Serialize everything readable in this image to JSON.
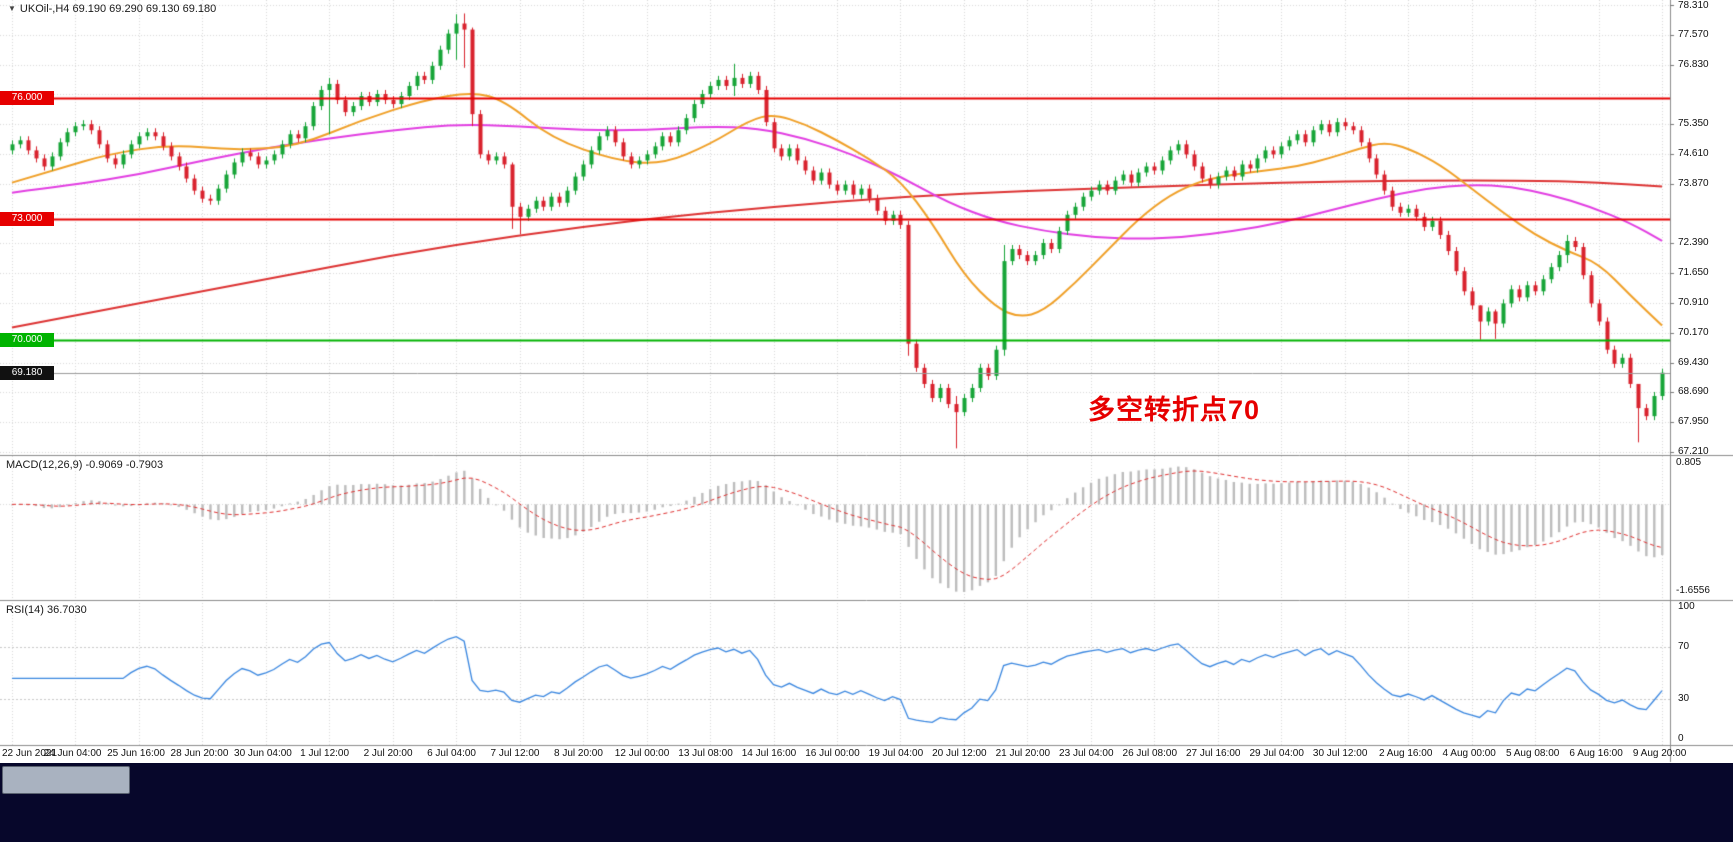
{
  "window": {
    "symbol_line": "UKOil-,H4 69.190 69.290 69.130 69.180",
    "symbol": "UKOil-",
    "timeframe": "H4",
    "ohlc": {
      "open": "69.190",
      "high": "69.290",
      "low": "69.130",
      "close": "69.180"
    }
  },
  "annotation": {
    "text": "多空转折点70",
    "color": "#e60000"
  },
  "colors": {
    "bull": "#17a538",
    "bear": "#d9232e",
    "grid": "#d9d9d9",
    "level_red": "#e60000",
    "level_green": "#00b300",
    "bid_line": "#9a9a9a",
    "ma_fast": "#f0a028",
    "ma_mid": "#e23ee2",
    "ma_slow": "#dd3333",
    "macd_hist": "#bdbdbd",
    "macd_signal": "#e03030",
    "rsi": "#3a87e0",
    "panel_border": "#8c8c8c",
    "axis_text": "#111111",
    "taskbar": "#07072b",
    "taskbar_button": "#a9b2c0",
    "badge_dark": "#111111"
  },
  "chart_data": {
    "type": "candlestick",
    "symbol": "UKOil-",
    "timeframe": "H4",
    "title": "UKOil-,H4",
    "y_range": [
      67.21,
      78.31
    ],
    "grid_step": 0.74,
    "y_tick_labels": [
      "78.310",
      "77.570",
      "76.830",
      "75.350",
      "74.610",
      "73.870",
      "72.390",
      "71.650",
      "70.910",
      "70.170",
      "69.430",
      "68.690",
      "67.950",
      "67.210"
    ],
    "x_tick_labels": [
      "22 Jun 2021",
      "24 Jun 04:00",
      "25 Jun 16:00",
      "28 Jun 20:00",
      "30 Jun 04:00",
      "1 Jul 12:00",
      "2 Jul 20:00",
      "6 Jul 04:00",
      "7 Jul 12:00",
      "8 Jul 20:00",
      "12 Jul 00:00",
      "13 Jul 08:00",
      "14 Jul 16:00",
      "16 Jul 00:00",
      "19 Jul 04:00",
      "20 Jul 12:00",
      "21 Jul 20:00",
      "23 Jul 04:00",
      "26 Jul 08:00",
      "27 Jul 16:00",
      "29 Jul 04:00",
      "30 Jul 12:00",
      "2 Aug 16:00",
      "4 Aug 00:00",
      "5 Aug 08:00",
      "6 Aug 16:00",
      "9 Aug 20:00"
    ],
    "bars_per_tick": 8,
    "closes": [
      74.85,
      74.95,
      74.7,
      74.5,
      74.3,
      74.55,
      74.9,
      75.15,
      75.3,
      75.35,
      75.2,
      74.85,
      74.5,
      74.35,
      74.6,
      74.85,
      75.05,
      75.15,
      75.05,
      74.8,
      74.55,
      74.3,
      74.0,
      73.7,
      73.5,
      73.45,
      73.75,
      74.1,
      74.4,
      74.65,
      74.55,
      74.35,
      74.45,
      74.6,
      74.85,
      75.1,
      75.0,
      75.3,
      75.8,
      76.2,
      76.35,
      75.95,
      75.65,
      75.8,
      76.05,
      75.9,
      76.1,
      75.95,
      75.85,
      76.05,
      76.3,
      76.55,
      76.45,
      76.8,
      77.2,
      77.6,
      77.85,
      77.7,
      75.6,
      74.6,
      74.45,
      74.55,
      74.35,
      73.3,
      73.05,
      73.25,
      73.45,
      73.3,
      73.55,
      73.4,
      73.7,
      74.05,
      74.35,
      74.7,
      75.05,
      75.2,
      74.9,
      74.55,
      74.35,
      74.45,
      74.6,
      74.8,
      75.05,
      74.9,
      75.2,
      75.5,
      75.85,
      76.1,
      76.3,
      76.45,
      76.3,
      76.5,
      76.35,
      76.55,
      76.2,
      75.4,
      74.75,
      74.55,
      74.75,
      74.45,
      74.2,
      73.95,
      74.15,
      73.85,
      73.7,
      73.85,
      73.6,
      73.75,
      73.5,
      73.2,
      72.95,
      73.1,
      72.85,
      69.9,
      69.3,
      68.9,
      68.55,
      68.8,
      68.4,
      68.2,
      68.55,
      68.8,
      69.3,
      69.1,
      69.75,
      71.95,
      72.25,
      72.1,
      71.95,
      72.1,
      72.4,
      72.25,
      72.7,
      73.1,
      73.3,
      73.55,
      73.7,
      73.85,
      73.7,
      73.95,
      74.1,
      73.9,
      74.15,
      74.3,
      74.2,
      74.45,
      74.7,
      74.85,
      74.6,
      74.3,
      74.0,
      73.85,
      74.05,
      74.2,
      74.05,
      74.35,
      74.25,
      74.5,
      74.7,
      74.6,
      74.8,
      74.95,
      75.1,
      74.9,
      75.2,
      75.35,
      75.15,
      75.4,
      75.3,
      75.2,
      74.9,
      74.5,
      74.1,
      73.7,
      73.3,
      73.15,
      73.25,
      73.05,
      72.8,
      72.95,
      72.6,
      72.2,
      71.7,
      71.2,
      70.85,
      70.45,
      70.7,
      70.4,
      70.9,
      71.25,
      71.05,
      71.35,
      71.2,
      71.5,
      71.8,
      72.1,
      72.45,
      72.3,
      71.6,
      70.9,
      70.45,
      69.75,
      69.4,
      69.55,
      68.9,
      68.3,
      68.1,
      68.6,
      69.18
    ],
    "wick_pad": 0.1,
    "wick_overrides": {
      "40": [
        76.5,
        75.1
      ],
      "56": [
        78.08,
        76.95
      ],
      "57": [
        78.1,
        76.75
      ],
      "58": [
        77.75,
        75.3
      ],
      "63": [
        74.4,
        72.75
      ],
      "64": [
        73.4,
        72.62
      ],
      "91": [
        76.85,
        76.05
      ],
      "113": [
        72.95,
        69.6
      ],
      "119": [
        68.6,
        67.3
      ],
      "125": [
        72.35,
        69.6
      ],
      "185": [
        70.85,
        70.0
      ],
      "187": [
        70.75,
        70.02
      ],
      "196": [
        72.6,
        71.9
      ],
      "205": [
        68.85,
        67.45
      ]
    },
    "levels": [
      {
        "label": "76.000",
        "value": 76.0,
        "color": "red"
      },
      {
        "label": "73.000",
        "value": 73.0,
        "color": "red"
      },
      {
        "label": "70.000",
        "value": 70.0,
        "color": "green"
      }
    ],
    "bid": {
      "label": "69.180",
      "value": 69.18
    },
    "overlays": [
      {
        "name": "ma-fast-orange",
        "anchors": [
          [
            0,
            73.9
          ],
          [
            6,
            74.25
          ],
          [
            12,
            74.6
          ],
          [
            20,
            74.85
          ],
          [
            28,
            74.7
          ],
          [
            36,
            74.8
          ],
          [
            44,
            75.45
          ],
          [
            52,
            75.95
          ],
          [
            58,
            76.15
          ],
          [
            62,
            75.95
          ],
          [
            68,
            75.0
          ],
          [
            76,
            74.45
          ],
          [
            82,
            74.35
          ],
          [
            88,
            74.85
          ],
          [
            93,
            75.45
          ],
          [
            96,
            75.6
          ],
          [
            100,
            75.35
          ],
          [
            104,
            74.95
          ],
          [
            108,
            74.5
          ],
          [
            112,
            73.95
          ],
          [
            116,
            72.9
          ],
          [
            120,
            71.6
          ],
          [
            124,
            70.8
          ],
          [
            127,
            70.55
          ],
          [
            130,
            70.7
          ],
          [
            134,
            71.4
          ],
          [
            138,
            72.2
          ],
          [
            142,
            73.0
          ],
          [
            146,
            73.6
          ],
          [
            150,
            73.95
          ],
          [
            154,
            74.1
          ],
          [
            158,
            74.2
          ],
          [
            162,
            74.3
          ],
          [
            166,
            74.5
          ],
          [
            170,
            74.75
          ],
          [
            173,
            74.9
          ],
          [
            176,
            74.75
          ],
          [
            180,
            74.35
          ],
          [
            184,
            73.75
          ],
          [
            188,
            73.15
          ],
          [
            192,
            72.6
          ],
          [
            196,
            72.2
          ],
          [
            200,
            71.9
          ],
          [
            204,
            71.1
          ],
          [
            208,
            70.35
          ]
        ]
      },
      {
        "name": "ma-mid-magenta",
        "anchors": [
          [
            0,
            73.65
          ],
          [
            8,
            73.85
          ],
          [
            16,
            74.1
          ],
          [
            24,
            74.45
          ],
          [
            32,
            74.75
          ],
          [
            40,
            75.0
          ],
          [
            48,
            75.2
          ],
          [
            56,
            75.35
          ],
          [
            64,
            75.3
          ],
          [
            72,
            75.2
          ],
          [
            80,
            75.2
          ],
          [
            88,
            75.3
          ],
          [
            94,
            75.25
          ],
          [
            100,
            75.0
          ],
          [
            106,
            74.6
          ],
          [
            112,
            74.05
          ],
          [
            118,
            73.4
          ],
          [
            124,
            72.95
          ],
          [
            130,
            72.7
          ],
          [
            136,
            72.55
          ],
          [
            142,
            72.5
          ],
          [
            148,
            72.55
          ],
          [
            154,
            72.7
          ],
          [
            160,
            72.9
          ],
          [
            166,
            73.2
          ],
          [
            172,
            73.5
          ],
          [
            178,
            73.75
          ],
          [
            184,
            73.85
          ],
          [
            189,
            73.8
          ],
          [
            194,
            73.6
          ],
          [
            199,
            73.3
          ],
          [
            204,
            72.9
          ],
          [
            208,
            72.45
          ]
        ]
      },
      {
        "name": "ma-slow-red",
        "anchors": [
          [
            0,
            70.3
          ],
          [
            16,
            70.9
          ],
          [
            32,
            71.5
          ],
          [
            48,
            72.1
          ],
          [
            64,
            72.6
          ],
          [
            80,
            73.0
          ],
          [
            96,
            73.3
          ],
          [
            112,
            73.55
          ],
          [
            128,
            73.7
          ],
          [
            144,
            73.8
          ],
          [
            160,
            73.9
          ],
          [
            176,
            73.95
          ],
          [
            192,
            73.95
          ],
          [
            200,
            73.9
          ],
          [
            208,
            73.8
          ]
        ]
      }
    ],
    "macd": {
      "label": "MACD(12,26,9) -0.9069 -0.7903",
      "params": [
        12,
        26,
        9
      ],
      "values": [
        "-0.9069",
        "-0.7903"
      ],
      "axis_top": "0.805",
      "axis_bottom": "-1.6556"
    },
    "rsi": {
      "label": "RSI(14) 36.7030",
      "params": [
        14
      ],
      "value": "36.7030",
      "axis_labels": [
        "100",
        "70",
        "30",
        "0"
      ],
      "level_values": [
        70,
        30
      ]
    }
  }
}
